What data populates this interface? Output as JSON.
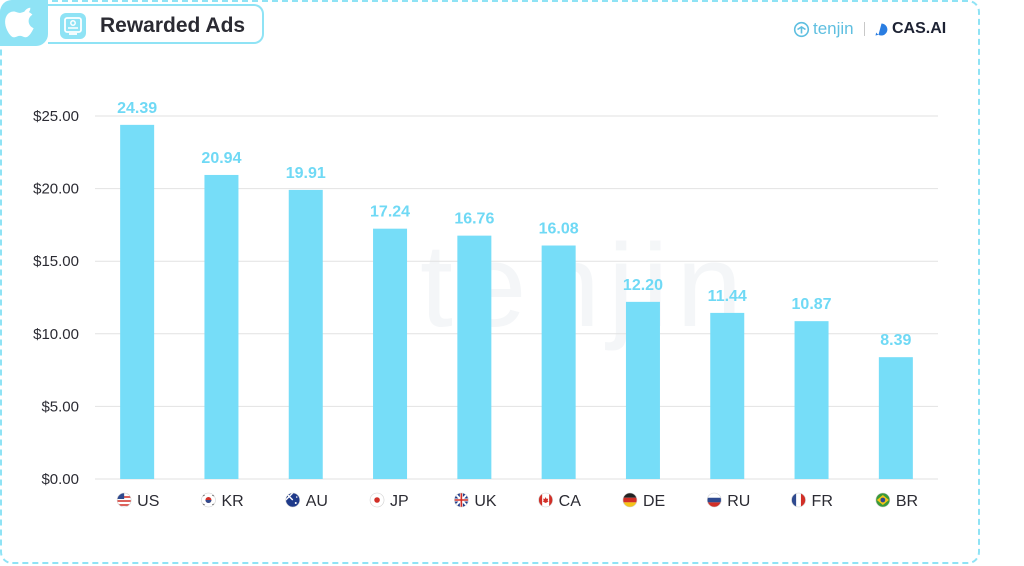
{
  "header": {
    "title": "Rewarded Ads",
    "platform_icon": "apple-icon",
    "title_icon": "ad-screen-icon",
    "brand_tenjin": "tenjin",
    "brand_cas": "CAS.AI"
  },
  "colors": {
    "bar": "#76ddf8",
    "accent": "#8fe3f5",
    "value_label": "#6fd9f5",
    "grid": "#e2e2e2"
  },
  "chart_data": {
    "type": "bar",
    "categories": [
      "US",
      "KR",
      "AU",
      "JP",
      "UK",
      "CA",
      "DE",
      "RU",
      "FR",
      "BR"
    ],
    "flag_icons": [
      "flag-us-icon",
      "flag-kr-icon",
      "flag-au-icon",
      "flag-jp-icon",
      "flag-uk-icon",
      "flag-ca-icon",
      "flag-de-icon",
      "flag-ru-icon",
      "flag-fr-icon",
      "flag-br-icon"
    ],
    "values": [
      24.39,
      20.94,
      19.91,
      17.24,
      16.76,
      16.08,
      12.2,
      11.44,
      10.87,
      8.39
    ],
    "value_labels": [
      "24.39",
      "20.94",
      "19.91",
      "17.24",
      "16.76",
      "16.08",
      "12.20",
      "11.44",
      "10.87",
      "8.39"
    ],
    "yticks": [
      "$0.00",
      "$5.00",
      "$10.00",
      "$15.00",
      "$20.00",
      "$25.00"
    ],
    "ylim": [
      0,
      25
    ],
    "grid": true,
    "title": "Rewarded Ads",
    "xlabel": "",
    "ylabel": ""
  }
}
